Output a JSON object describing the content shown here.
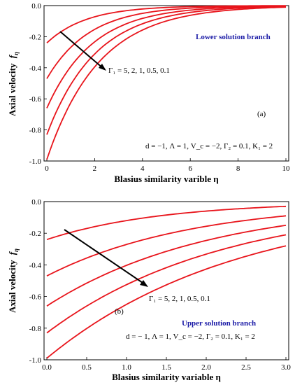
{
  "chart_data": [
    {
      "type": "line",
      "panel_label": "(a)",
      "xlabel": "Blasius similarity varible η",
      "ylabel": "Axial velocity f_η",
      "ylabel_main": "Axial velocity",
      "ylabel_sub": "η",
      "xlim": [
        0,
        10
      ],
      "ylim": [
        -1.0,
        0.0
      ],
      "xticks": [
        0,
        2,
        4,
        6,
        8,
        10
      ],
      "xtick_labels": [
        "0",
        "2",
        "4",
        "6",
        "8",
        "10"
      ],
      "yticks": [
        0.0,
        -0.2,
        -0.4,
        -0.6,
        -0.8,
        -1.0
      ],
      "ytick_labels": [
        "0.0",
        "-0.2",
        "-0.4",
        "-0.6",
        "-0.8",
        "-1.0"
      ],
      "branch_label": "Lower solution branch",
      "gamma_label": "Γ₁ = 5, 2, 1, 0.5, 0.1",
      "params_label": "d = −1, Λ = 1, V_c = −2, Γ₂ = 0.1, K₁ = 2",
      "series": [
        {
          "values_at_eta0": -0.24,
          "decay_rate": 0.6
        },
        {
          "values_at_eta0": -0.47,
          "decay_rate": 0.56
        },
        {
          "values_at_eta0": -0.66,
          "decay_rate": 0.52
        },
        {
          "values_at_eta0": -0.83,
          "decay_rate": 0.49
        },
        {
          "values_at_eta0": -0.99,
          "decay_rate": 0.46
        }
      ],
      "color": "#e8141b"
    },
    {
      "type": "line",
      "panel_label": "(b)",
      "xlabel": "Blasius similarity variable η",
      "ylabel": "Axial velocity f_η",
      "ylabel_main": "Axial velocity",
      "ylabel_sub": "η",
      "xlim": [
        0,
        3.0
      ],
      "ylim": [
        -1.0,
        0.0
      ],
      "xticks": [
        0.0,
        0.5,
        1.0,
        1.5,
        2.0,
        2.5,
        3.0
      ],
      "xtick_labels": [
        "0.0",
        "0.5",
        "1.0",
        "1.5",
        "2.0",
        "2.5",
        "3.0"
      ],
      "yticks": [
        0.0,
        -0.2,
        -0.4,
        -0.6,
        -0.8,
        -1.0
      ],
      "ytick_labels": [
        "0.0",
        "-0.2",
        "-0.4",
        "-0.6",
        "-0.8",
        "-1.0"
      ],
      "branch_label": "Upper solution branch",
      "gamma_label": "Γ₁ = 5, 2, 1, 0.5, 0.1",
      "params_label": "d = − 1, Λ = 1, V_c = −2, Γ₂ = 0.1, K₁ = 2",
      "series": [
        {
          "values_at_eta0": -0.24,
          "value_at_eta3": -0.03
        },
        {
          "values_at_eta0": -0.47,
          "value_at_eta3": -0.09
        },
        {
          "values_at_eta0": -0.66,
          "value_at_eta3": -0.15
        },
        {
          "values_at_eta0": -0.83,
          "value_at_eta3": -0.21
        },
        {
          "values_at_eta0": -0.99,
          "value_at_eta3": -0.28
        }
      ],
      "color": "#e8141b"
    }
  ]
}
